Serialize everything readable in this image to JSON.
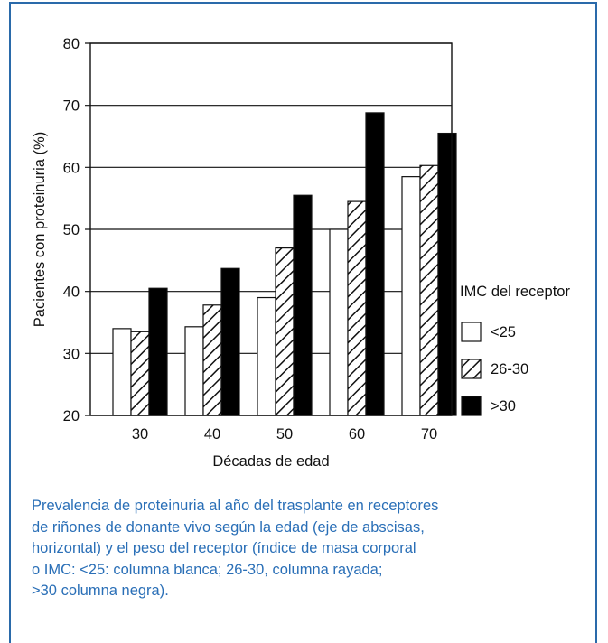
{
  "chart_data": {
    "type": "bar",
    "xlabel": "Décadas de edad",
    "ylabel": "Pacientes con proteinuria (%)",
    "categories": [
      "30",
      "40",
      "50",
      "60",
      "70"
    ],
    "ylim": [
      20,
      80
    ],
    "yticks": [
      "20",
      "30",
      "40",
      "50",
      "60",
      "70",
      "80"
    ],
    "grid": true,
    "legend_title": "IMC del receptor",
    "legend_position": "right",
    "series": [
      {
        "name": "<25",
        "fill": "white",
        "values": [
          34,
          34.3,
          39,
          50,
          58.5
        ]
      },
      {
        "name": "26-30",
        "fill": "hatched",
        "values": [
          33.5,
          37.8,
          47,
          54.5,
          60.3
        ]
      },
      {
        "name": ">30",
        "fill": "black",
        "values": [
          40.5,
          43.7,
          55.5,
          68.8,
          65.5
        ]
      }
    ]
  },
  "caption": "Prevalencia de proteinuria al año del trasplante en receptores\nde riñones de donante vivo según la edad (eje de abscisas,\nhorizontal) y el peso del receptor (índice de masa corporal\no IMC: <25: columna blanca; 26-30, columna rayada;\n>30 columna negra).",
  "colors": {
    "frame": "#2a6aaa",
    "caption": "#2a6fb7"
  }
}
